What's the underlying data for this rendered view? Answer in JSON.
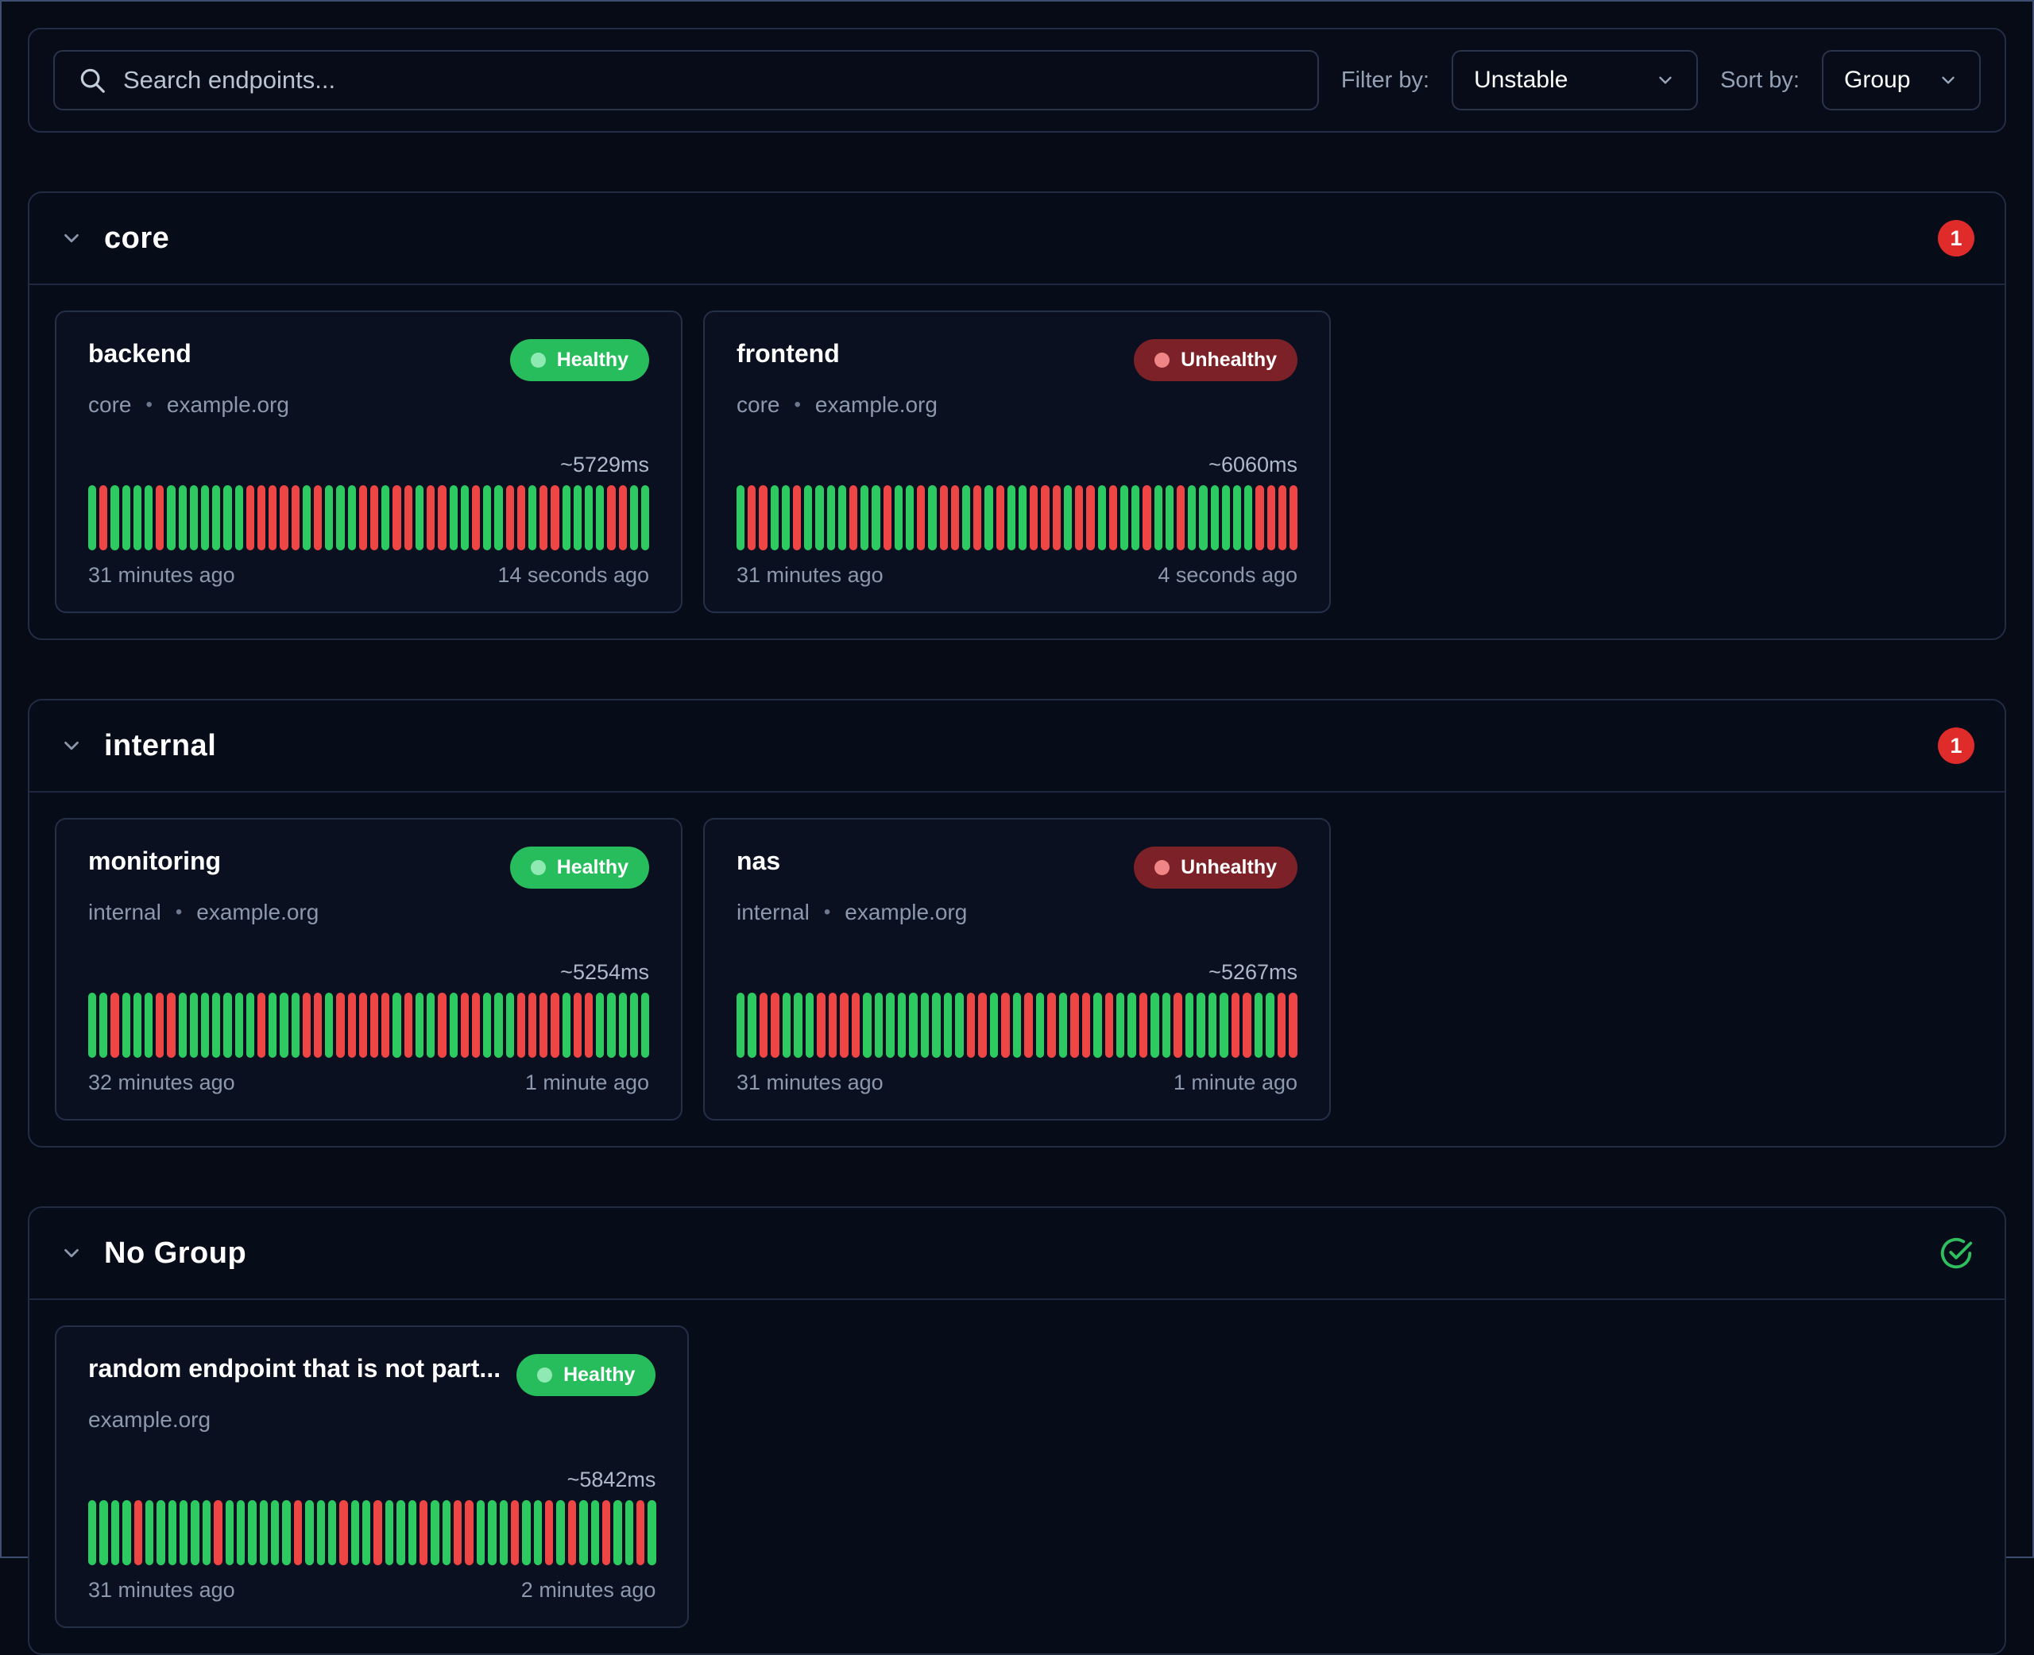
{
  "bullet": "•",
  "toolbar": {
    "search_placeholder": "Search endpoints...",
    "filter_label": "Filter by:",
    "filter_value": "Unstable",
    "sort_label": "Sort by:",
    "sort_value": "Group"
  },
  "colors": {
    "healthy_badge": "#27bd5d",
    "unhealthy_badge": "#7c2127",
    "bar_up": "#2dc961",
    "bar_down": "#ee4545",
    "count_badge": "#e02b2b",
    "background": "#060b16"
  },
  "groups": [
    {
      "name": "core",
      "badge": "1",
      "all_healthy": false,
      "endpoints": [
        {
          "name": "backend",
          "status": "Healthy",
          "group_label": "core",
          "host": "example.org",
          "response_time": "~5729ms",
          "oldest": "31 minutes ago",
          "newest": "14 seconds ago",
          "history": "grggggrgggggggrrrrrgrgggrrgrrgrrggrggrrgrrggggrrgg"
        },
        {
          "name": "frontend",
          "status": "Unhealthy",
          "group_label": "core",
          "host": "example.org",
          "response_time": "~6060ms",
          "oldest": "31 minutes ago",
          "newest": "4 seconds ago",
          "history": "grrggrggggrggrggrgrrgrgrggrrrgrrgrggrggrggggggrrrr"
        }
      ]
    },
    {
      "name": "internal",
      "badge": "1",
      "all_healthy": false,
      "endpoints": [
        {
          "name": "monitoring",
          "status": "Healthy",
          "group_label": "internal",
          "host": "example.org",
          "response_time": "~5254ms",
          "oldest": "32 minutes ago",
          "newest": "1 minute ago",
          "history": "ggrgggrrgggggggrgggrrgrrrrrgrggrgrrgggrrrrgrrggggg"
        },
        {
          "name": "nas",
          "status": "Unhealthy",
          "group_label": "internal",
          "host": "example.org",
          "response_time": "~5267ms",
          "oldest": "31 minutes ago",
          "newest": "1 minute ago",
          "history": "ggrrgggrrrrgggggggggrrgrgrgrgrrgrggrggrggggrrggrr"
        }
      ]
    },
    {
      "name": "No Group",
      "badge": null,
      "all_healthy": true,
      "endpoints": [
        {
          "name": "random endpoint that is not part...",
          "status": "Healthy",
          "group_label": null,
          "host": "example.org",
          "response_time": "~5842ms",
          "oldest": "31 minutes ago",
          "newest": "2 minutes ago",
          "history": "ggggrggggggrggggggrgggrggrgggrggrrgggrggrgrggrggrg"
        }
      ]
    }
  ]
}
